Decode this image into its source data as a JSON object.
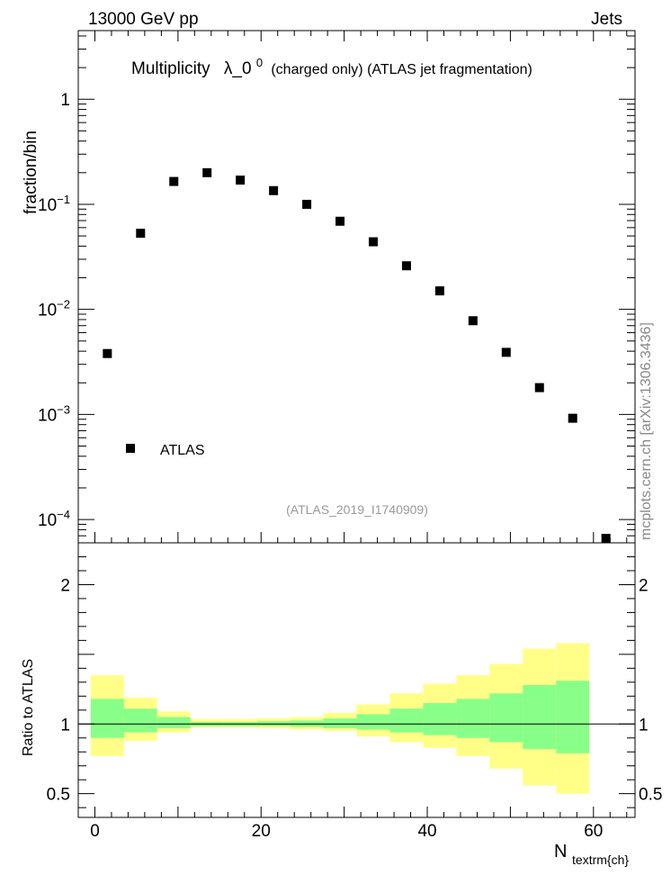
{
  "header": {
    "left": "13000 GeV pp",
    "right": "Jets"
  },
  "side_label": "mcplots.cern.ch [arXiv:1306.3436]",
  "chart_data": [
    {
      "type": "scatter",
      "title": {
        "prefix": "Multiplicity",
        "lambda": "λ_0",
        "lambda_sup": "0",
        "suffix": "(charged only) (ATLAS jet fragmentation)"
      },
      "ylabel": "fraction/bin",
      "yscale": "log",
      "ylim": [
        6e-05,
        4.5
      ],
      "xlim": [
        -2,
        65
      ],
      "ytick_labels": [
        {
          "value": 1,
          "label": "1",
          "exp": ""
        },
        {
          "value": 0.1,
          "label": "10",
          "exp": "−1"
        },
        {
          "value": 0.01,
          "label": "10",
          "exp": "−2"
        },
        {
          "value": 0.001,
          "label": "10",
          "exp": "−3"
        },
        {
          "value": 0.0001,
          "label": "10",
          "exp": "−4"
        }
      ],
      "legend": {
        "label": "ATLAS",
        "position": "bottom-left"
      },
      "annotation": "(ATLAS_2019_I1740909)",
      "series": [
        {
          "name": "ATLAS",
          "x": [
            1.5,
            5.5,
            9.5,
            13.5,
            17.5,
            21.5,
            25.5,
            29.5,
            33.5,
            37.5,
            41.5,
            45.5,
            49.5,
            53.5,
            57.5,
            61.5
          ],
          "y": [
            0.0038,
            0.053,
            0.165,
            0.2,
            0.17,
            0.135,
            0.1,
            0.069,
            0.044,
            0.026,
            0.015,
            0.0078,
            0.0039,
            0.0018,
            0.00092,
            6.2e-05
          ]
        }
      ]
    },
    {
      "type": "area",
      "ylabel": "Ratio to ATLAS",
      "xlabel": "N",
      "xlabel_sub": "textrm{ch}",
      "xlim": [
        -2,
        65
      ],
      "ylim": [
        0.33,
        2.3
      ],
      "xticks": [
        {
          "value": 0,
          "label": "0"
        },
        {
          "value": 20,
          "label": "20"
        },
        {
          "value": 40,
          "label": "40"
        },
        {
          "value": 60,
          "label": "60"
        }
      ],
      "yticks": [
        {
          "value": 0.5,
          "label": "0.5"
        },
        {
          "value": 1,
          "label": "1"
        },
        {
          "value": 2,
          "label": "2"
        }
      ],
      "reference_line": 1,
      "bin_edges": [
        -0.5,
        3.5,
        7.5,
        11.5,
        15.5,
        19.5,
        23.5,
        27.5,
        31.5,
        35.5,
        39.5,
        43.5,
        47.5,
        51.5,
        55.5,
        59.5
      ],
      "bands": [
        {
          "name": "outer",
          "color": "#ffff88",
          "lower": [
            0.77,
            0.88,
            0.94,
            0.975,
            0.975,
            0.97,
            0.96,
            0.95,
            0.91,
            0.87,
            0.83,
            0.77,
            0.68,
            0.56,
            0.5
          ],
          "upper": [
            1.35,
            1.19,
            1.09,
            1.035,
            1.035,
            1.04,
            1.05,
            1.08,
            1.14,
            1.22,
            1.29,
            1.35,
            1.43,
            1.54,
            1.58
          ]
        },
        {
          "name": "inner",
          "color": "#88ff88",
          "lower": [
            0.9,
            0.94,
            0.97,
            0.985,
            0.985,
            0.985,
            0.98,
            0.97,
            0.96,
            0.94,
            0.92,
            0.9,
            0.87,
            0.82,
            0.79
          ],
          "upper": [
            1.18,
            1.11,
            1.05,
            1.015,
            1.015,
            1.02,
            1.025,
            1.04,
            1.07,
            1.11,
            1.15,
            1.18,
            1.22,
            1.28,
            1.31
          ]
        }
      ]
    }
  ]
}
